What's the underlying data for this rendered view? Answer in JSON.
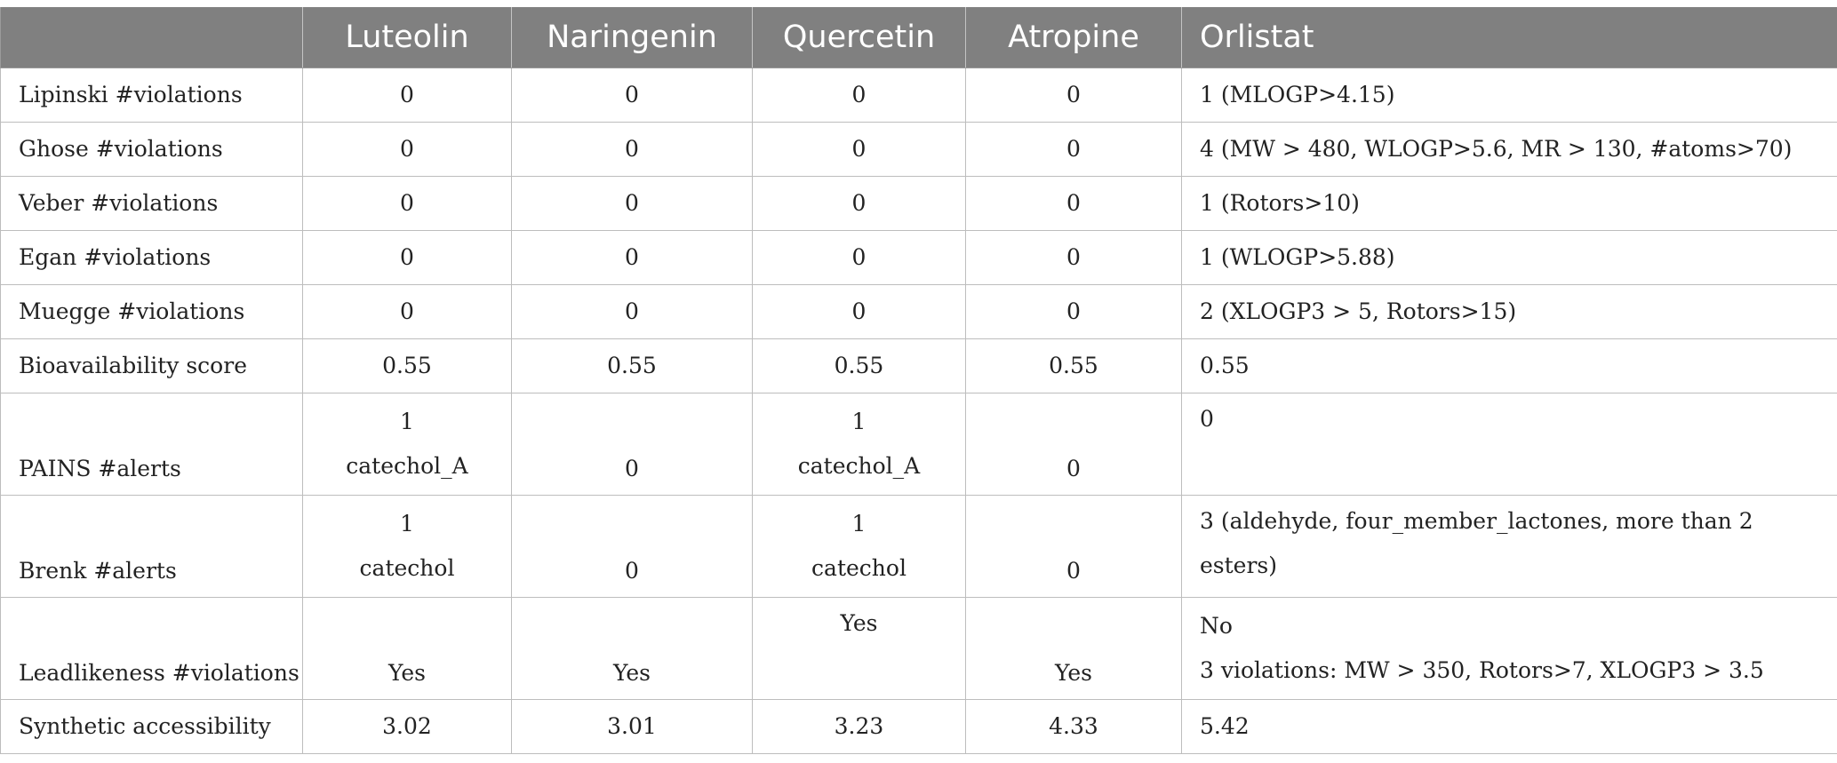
{
  "table": {
    "headers": [
      "",
      "Luteolin",
      "Naringenin",
      "Quercetin",
      "Atropine",
      "Orlistat"
    ],
    "rows": [
      {
        "label": "Lipinski #violations",
        "values": [
          "0",
          "0",
          "0",
          "0",
          "1 (MLOGP>4.15)"
        ]
      },
      {
        "label": "Ghose #violations",
        "values": [
          "0",
          "0",
          "0",
          "0",
          "4 (MW > 480, WLOGP>5.6, MR > 130, #atoms>70)"
        ]
      },
      {
        "label": "Veber #violations",
        "values": [
          "0",
          "0",
          "0",
          "0",
          "1 (Rotors>10)"
        ]
      },
      {
        "label": "Egan #violations",
        "values": [
          "0",
          "0",
          "0",
          "0",
          "1 (WLOGP>5.88)"
        ]
      },
      {
        "label": "Muegge #violations",
        "values": [
          "0",
          "0",
          "0",
          "0",
          "2 (XLOGP3 > 5, Rotors>15)"
        ]
      },
      {
        "label": "Bioavailability score",
        "values": [
          "0.55",
          "0.55",
          "0.55",
          "0.55",
          "0.55"
        ]
      }
    ],
    "pains": {
      "label": "PAINS #alerts",
      "luteolin": [
        "1",
        "catechol_A"
      ],
      "naringenin": "0",
      "quercetin": [
        "1",
        "catechol_A"
      ],
      "atropine": "0",
      "orlistat": "0"
    },
    "brenk": {
      "label": "Brenk #alerts",
      "luteolin": [
        "1",
        "catechol"
      ],
      "naringenin": "0",
      "quercetin": [
        "1",
        "catechol"
      ],
      "atropine": "0",
      "orlistat": "3 (aldehyde, four_member_lactones, more than 2 esters)"
    },
    "leadlikeness": {
      "label": "Leadlikeness #violations",
      "luteolin": "Yes",
      "naringenin": "Yes",
      "quercetin": "Yes",
      "atropine": "Yes",
      "orlistat": [
        "No",
        "3 violations: MW > 350, Rotors>7, XLOGP3 > 3.5"
      ]
    },
    "synthetic": {
      "label": "Synthetic accessibility",
      "values": [
        "3.02",
        "3.01",
        "3.23",
        "4.33",
        "5.42"
      ]
    }
  }
}
